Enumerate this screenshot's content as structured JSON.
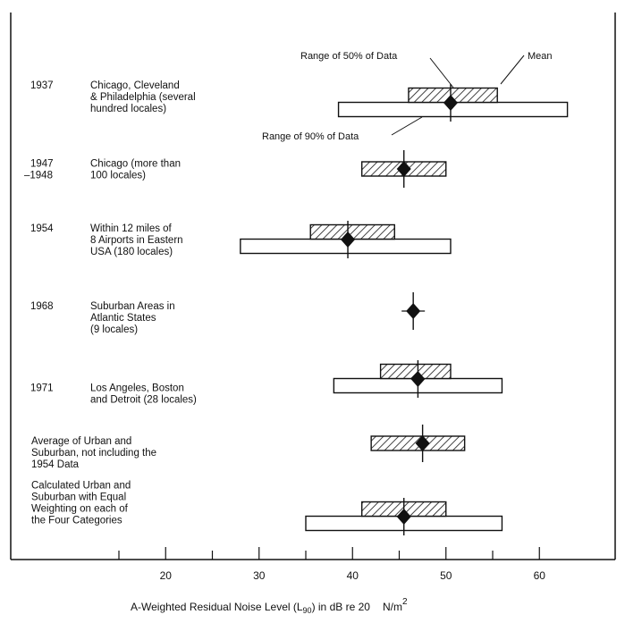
{
  "chart_data": {
    "type": "range-bar",
    "xlabel_main": "A-Weighted Residual Noise Level (L",
    "xlabel_sub": "90",
    "xlabel_rest": ") in dB re 20",
    "xlabel_unit": "N/m",
    "xlabel_sup": "2",
    "xlim": [
      10,
      65
    ],
    "x_ticks": [
      20,
      30,
      40,
      50,
      60
    ],
    "annotations": {
      "range50": "Range of 50% of Data",
      "range90": "Range of 90% of Data",
      "mean": "Mean"
    },
    "rows": [
      {
        "year": "1937",
        "desc": [
          "Chicago, Cleveland",
          "& Philadelphia (several",
          "hundred locales)"
        ],
        "range50": [
          46,
          55.5
        ],
        "range90": [
          38.5,
          63
        ],
        "mean": 50.5
      },
      {
        "year": "1947",
        "year2": "–1948",
        "desc": [
          "Chicago (more than",
          "100 locales)"
        ],
        "range50": [
          41,
          50
        ],
        "range90": null,
        "mean": 45.5
      },
      {
        "year": "1954",
        "desc": [
          "Within 12 miles of",
          "8 Airports in Eastern",
          "USA (180 locales)"
        ],
        "range50": [
          35.5,
          44.5
        ],
        "range90": [
          28,
          50.5
        ],
        "mean": 39.5
      },
      {
        "year": "1968",
        "desc": [
          "Suburban Areas in",
          "Atlantic States",
          "(9 locales)"
        ],
        "range50": null,
        "range90": null,
        "mean": 46.5
      },
      {
        "year": "1971",
        "desc": [
          "Los Angeles, Boston",
          "and Detroit (28 locales)"
        ],
        "range50": [
          43,
          50.5
        ],
        "range90": [
          38,
          56
        ],
        "mean": 47
      },
      {
        "year": "",
        "desc": [
          "Average of Urban and",
          "Suburban, not including the",
          "1954 Data"
        ],
        "range50": [
          42,
          52
        ],
        "range90": null,
        "mean": 47.5
      },
      {
        "year": "",
        "desc": [
          "Calculated Urban and",
          "Suburban with Equal",
          "Weighting on each of",
          "the Four Categories"
        ],
        "range50": [
          41,
          50
        ],
        "range90": [
          35,
          56
        ],
        "mean": 45.5
      }
    ]
  }
}
